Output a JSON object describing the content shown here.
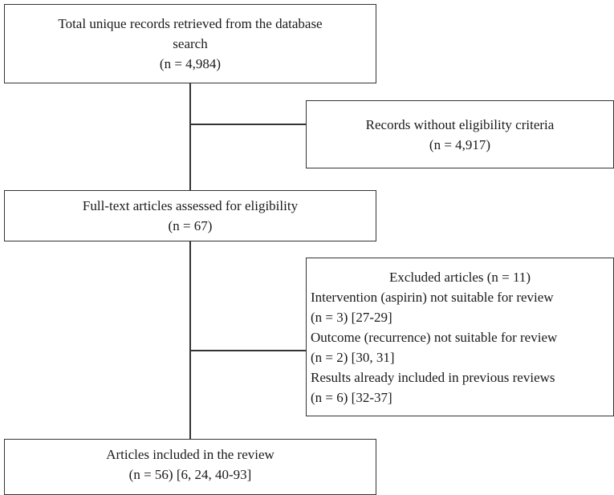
{
  "boxes": {
    "records": {
      "line1": "Total unique records retrieved from the database",
      "line2": "search",
      "line3": "(n = 4,984)"
    },
    "without_criteria": {
      "line1": "Records without eligibility criteria",
      "line2": "(n = 4,917)"
    },
    "fulltext": {
      "line1": "Full-text articles assessed for eligibility",
      "line2": "(n = 67)"
    },
    "excluded": {
      "title": "Excluded articles (n = 11)",
      "items": [
        "Intervention (aspirin) not suitable for review",
        "(n = 3) [27-29]",
        "Outcome (recurrence) not suitable for review",
        "(n = 2) [30, 31]",
        "Results already included in previous reviews",
        "(n = 6) [32-37]"
      ]
    },
    "included": {
      "line1": "Articles included in the review",
      "line2": "(n = 56) [6, 24, 40-93]"
    }
  }
}
